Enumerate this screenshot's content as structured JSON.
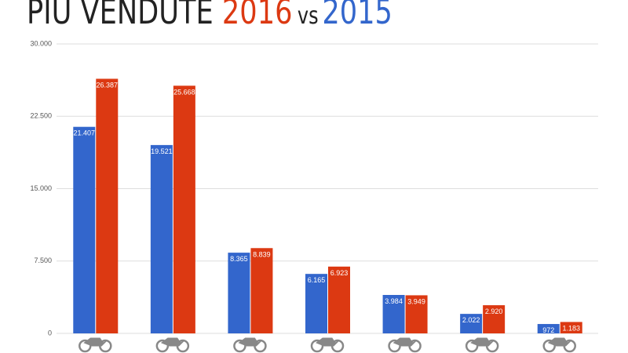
{
  "chart_data": {
    "type": "bar",
    "title": "PIÙ VENDUTE",
    "title_joiner": "vs",
    "categories": [
      null,
      null,
      null,
      null,
      null,
      null,
      null
    ],
    "series": [
      {
        "name": "2015",
        "color": "#3366cc",
        "values": [
          21407,
          19521,
          8365,
          6165,
          3984,
          2022,
          972
        ],
        "value_labels": [
          "21.407",
          "19.521",
          "8.365",
          "6.165",
          "3.984",
          "2.022",
          "972"
        ]
      },
      {
        "name": "2016",
        "color": "#dc3912",
        "values": [
          26387,
          25668,
          8839,
          6923,
          3949,
          2920,
          1183
        ],
        "value_labels": [
          "26.387",
          "25.668",
          "8.839",
          "6.923",
          "3.949",
          "2.920",
          "1.183"
        ]
      }
    ],
    "ylim": [
      0,
      30000
    ],
    "yticks": [
      0,
      {
        "value": 7500,
        "label": "7.500"
      },
      {
        "value": 15000,
        "label": "15.000"
      },
      {
        "value": 22500,
        "label": "22.500"
      },
      {
        "value": 30000,
        "label": "30.000"
      }
    ],
    "grid": true
  }
}
